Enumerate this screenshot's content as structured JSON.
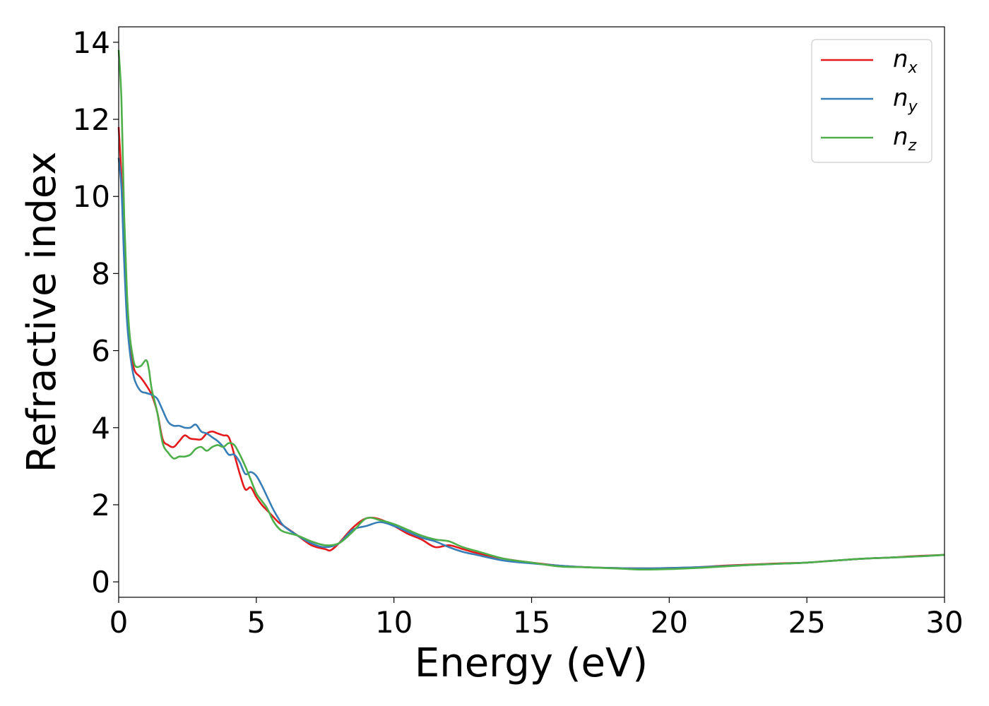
{
  "chart_data": {
    "type": "line",
    "xlabel": "Energy (eV)",
    "ylabel": "Refractive index",
    "xlim": [
      0,
      30
    ],
    "ylim": [
      -0.4,
      14.4
    ],
    "xticks": [
      0,
      5,
      10,
      15,
      20,
      25,
      30
    ],
    "yticks": [
      0,
      2,
      4,
      6,
      8,
      10,
      12,
      14
    ],
    "grid": false,
    "legend_position": "top-right",
    "series": [
      {
        "name": "n_x",
        "legend_base": "n",
        "legend_sub": "x",
        "color": "#e41a1c",
        "x": [
          0,
          0.1,
          0.2,
          0.3,
          0.4,
          0.5,
          0.6,
          0.8,
          1.0,
          1.2,
          1.4,
          1.6,
          1.8,
          2.0,
          2.2,
          2.4,
          2.6,
          2.8,
          3.0,
          3.2,
          3.4,
          3.6,
          3.8,
          4.0,
          4.2,
          4.4,
          4.6,
          4.8,
          5.0,
          5.2,
          5.4,
          5.6,
          5.8,
          6.0,
          6.5,
          7.0,
          7.5,
          7.7,
          8.0,
          8.5,
          9.0,
          9.5,
          10.0,
          10.5,
          11.0,
          11.5,
          12.0,
          12.5,
          13.0,
          14.0,
          15.0,
          16.0,
          17.0,
          18.0,
          19.0,
          20.0,
          21.0,
          22.0,
          23.0,
          24.0,
          25.0,
          26.0,
          27.0,
          28.0,
          29.0,
          30.0
        ],
        "y": [
          11.8,
          10.5,
          8.5,
          7.0,
          6.2,
          5.7,
          5.45,
          5.3,
          5.1,
          4.85,
          4.4,
          3.7,
          3.55,
          3.5,
          3.65,
          3.8,
          3.72,
          3.7,
          3.7,
          3.85,
          3.9,
          3.85,
          3.8,
          3.75,
          3.3,
          2.8,
          2.4,
          2.45,
          2.2,
          2.0,
          1.85,
          1.7,
          1.55,
          1.45,
          1.2,
          0.95,
          0.85,
          0.82,
          1.0,
          1.4,
          1.65,
          1.62,
          1.45,
          1.25,
          1.1,
          0.9,
          0.95,
          0.85,
          0.75,
          0.6,
          0.5,
          0.42,
          0.38,
          0.36,
          0.35,
          0.36,
          0.38,
          0.42,
          0.45,
          0.48,
          0.5,
          0.55,
          0.6,
          0.63,
          0.67,
          0.7
        ]
      },
      {
        "name": "n_y",
        "legend_base": "n",
        "legend_sub": "y",
        "color": "#377eb8",
        "x": [
          0,
          0.1,
          0.2,
          0.3,
          0.4,
          0.5,
          0.6,
          0.8,
          1.0,
          1.2,
          1.4,
          1.6,
          1.8,
          2.0,
          2.2,
          2.4,
          2.6,
          2.8,
          3.0,
          3.2,
          3.4,
          3.6,
          3.8,
          4.0,
          4.2,
          4.4,
          4.6,
          4.8,
          5.0,
          5.2,
          5.4,
          5.6,
          5.8,
          6.0,
          6.5,
          7.0,
          7.5,
          8.0,
          8.5,
          9.0,
          9.5,
          10.0,
          10.5,
          11.0,
          11.5,
          12.0,
          12.5,
          13.0,
          14.0,
          15.0,
          16.0,
          17.0,
          18.0,
          19.0,
          20.0,
          21.0,
          22.0,
          23.0,
          24.0,
          25.0,
          26.0,
          27.0,
          28.0,
          29.0,
          30.0
        ],
        "y": [
          11.0,
          10.2,
          8.3,
          6.8,
          6.0,
          5.5,
          5.2,
          4.95,
          4.9,
          4.85,
          4.75,
          4.45,
          4.15,
          4.05,
          4.05,
          4.0,
          4.0,
          4.08,
          3.9,
          3.85,
          3.75,
          3.65,
          3.5,
          3.3,
          3.3,
          3.1,
          2.8,
          2.85,
          2.75,
          2.5,
          2.2,
          1.9,
          1.65,
          1.45,
          1.2,
          1.0,
          0.9,
          1.0,
          1.35,
          1.45,
          1.55,
          1.45,
          1.3,
          1.15,
          1.05,
          0.9,
          0.78,
          0.7,
          0.55,
          0.48,
          0.42,
          0.38,
          0.36,
          0.35,
          0.36,
          0.38,
          0.41,
          0.44,
          0.47,
          0.5,
          0.55,
          0.6,
          0.63,
          0.66,
          0.7
        ]
      },
      {
        "name": "n_z",
        "legend_base": "n",
        "legend_sub": "z",
        "color": "#4daf4a",
        "x": [
          0,
          0.1,
          0.2,
          0.3,
          0.4,
          0.5,
          0.6,
          0.8,
          1.0,
          1.1,
          1.2,
          1.4,
          1.6,
          1.8,
          2.0,
          2.2,
          2.4,
          2.6,
          2.8,
          3.0,
          3.2,
          3.4,
          3.6,
          3.8,
          4.0,
          4.2,
          4.4,
          4.6,
          4.8,
          5.0,
          5.2,
          5.4,
          5.6,
          5.8,
          6.0,
          6.5,
          7.0,
          7.5,
          8.0,
          8.5,
          9.0,
          9.5,
          10.0,
          10.5,
          11.0,
          11.5,
          12.0,
          12.5,
          13.0,
          14.0,
          15.0,
          16.0,
          17.0,
          18.0,
          19.0,
          20.0,
          21.0,
          22.0,
          23.0,
          24.0,
          25.0,
          26.0,
          27.0,
          28.0,
          29.0,
          30.0
        ],
        "y": [
          13.8,
          12.5,
          9.5,
          7.5,
          6.4,
          5.9,
          5.6,
          5.6,
          5.75,
          5.5,
          5.0,
          4.4,
          3.6,
          3.35,
          3.2,
          3.25,
          3.25,
          3.3,
          3.45,
          3.5,
          3.4,
          3.5,
          3.55,
          3.5,
          3.6,
          3.55,
          3.3,
          3.0,
          2.65,
          2.3,
          2.1,
          1.9,
          1.6,
          1.4,
          1.3,
          1.2,
          1.05,
          0.95,
          1.0,
          1.3,
          1.65,
          1.6,
          1.5,
          1.35,
          1.2,
          1.1,
          1.05,
          0.9,
          0.8,
          0.6,
          0.5,
          0.4,
          0.38,
          0.35,
          0.32,
          0.33,
          0.36,
          0.4,
          0.44,
          0.47,
          0.5,
          0.55,
          0.6,
          0.63,
          0.66,
          0.7
        ]
      }
    ]
  }
}
